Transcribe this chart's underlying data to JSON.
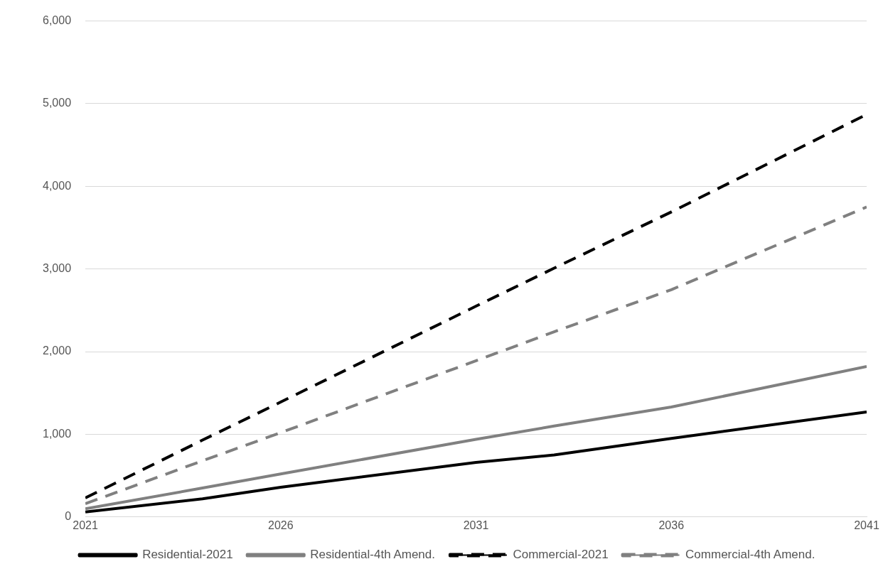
{
  "chart_data": {
    "type": "line",
    "x": [
      2021,
      2024,
      2026,
      2031,
      2033,
      2036,
      2041
    ],
    "series": [
      {
        "name": "Residential-2021",
        "color": "#000000",
        "line_style": "solid",
        "values": [
          60,
          220,
          360,
          660,
          750,
          950,
          1270
        ]
      },
      {
        "name": "Residential-4th Amend.",
        "color": "#808080",
        "line_style": "solid",
        "values": [
          100,
          350,
          520,
          940,
          1100,
          1330,
          1820
        ]
      },
      {
        "name": "Commercial-2021",
        "color": "#000000",
        "line_style": "dashed",
        "values": [
          230,
          930,
          1390,
          2550,
          3010,
          3690,
          4870
        ]
      },
      {
        "name": "Commercial-4th Amend.",
        "color": "#808080",
        "line_style": "dashed",
        "values": [
          160,
          680,
          1020,
          1890,
          2240,
          2750,
          3750
        ]
      }
    ],
    "xlim": [
      2021,
      2041
    ],
    "xticks": [
      2021,
      2026,
      2031,
      2036,
      2041
    ],
    "ylim": [
      0,
      6000
    ],
    "yticks": [
      0,
      {
        "value": 1000,
        "label": "1,000"
      },
      {
        "value": 2000,
        "label": "2,000"
      },
      {
        "value": 3000,
        "label": "3,000"
      },
      {
        "value": 4000,
        "label": "4,000"
      },
      {
        "value": 5000,
        "label": "5,000"
      },
      {
        "value": 6000,
        "label": "6,000"
      }
    ],
    "grid": "y",
    "legend": "bottom",
    "marker": "none"
  }
}
